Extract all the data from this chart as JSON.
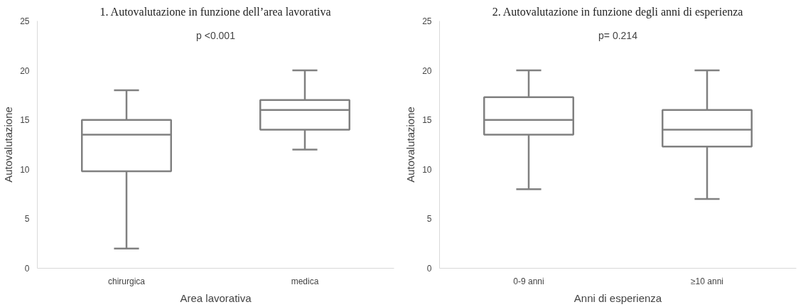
{
  "chart_data": [
    {
      "type": "box",
      "title": "1. Autovalutazione in funzione dell’area lavorativa",
      "xlabel": "Area lavorativa",
      "ylabel": "Autovalutazione",
      "categories": [
        "chirurgica",
        "medica"
      ],
      "color": "#808080",
      "ylim": [
        0,
        25
      ],
      "yticks": [
        0,
        5,
        10,
        15,
        20,
        25
      ],
      "grid": false,
      "annotations": [
        "p <0.001"
      ],
      "boxes": [
        {
          "low": 2,
          "q1": 9.8,
          "median": 13.5,
          "q3": 15,
          "high": 18
        },
        {
          "low": 12,
          "q1": 14,
          "median": 16,
          "q3": 17,
          "high": 20
        }
      ]
    },
    {
      "type": "box",
      "title": "2. Autovalutazione in funzione degli anni di esperienza",
      "xlabel": "Anni di esperienza",
      "ylabel": "Autovalutazione",
      "categories": [
        "0-9 anni",
        "≥10 anni"
      ],
      "color": "#808080",
      "ylim": [
        0,
        25
      ],
      "yticks": [
        0,
        5,
        10,
        15,
        20,
        25
      ],
      "grid": false,
      "annotations": [
        "p= 0.214"
      ],
      "boxes": [
        {
          "low": 8,
          "q1": 13.5,
          "median": 15,
          "q3": 17.3,
          "high": 20
        },
        {
          "low": 7,
          "q1": 12.3,
          "median": 14,
          "q3": 16,
          "high": 20
        }
      ]
    }
  ]
}
